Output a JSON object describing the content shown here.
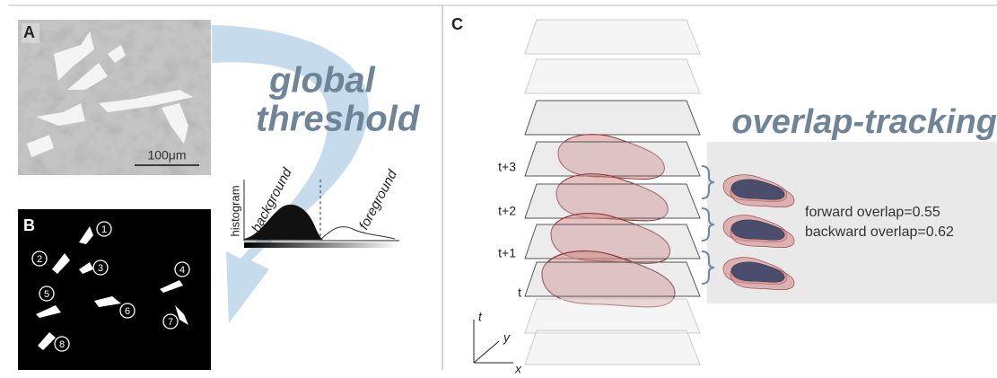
{
  "panels": {
    "a": {
      "label": "A",
      "scale_bar": "100μm"
    },
    "b": {
      "label": "B",
      "cell_ids": [
        "1",
        "2",
        "3",
        "4",
        "5",
        "6",
        "7",
        "8"
      ]
    },
    "c": {
      "label": "C",
      "time_labels": [
        "t+3",
        "t+2",
        "t+1",
        "t"
      ],
      "axes": [
        "t",
        "y",
        "x"
      ]
    }
  },
  "global_threshold": [
    "global",
    "threshold"
  ],
  "histogram": {
    "axis_label": "histogram",
    "left": "background",
    "right": "foreground"
  },
  "tracking": {
    "title": "overlap-tracking",
    "forward": "forward overlap=0.55",
    "backward": "backward overlap=0.62"
  }
}
